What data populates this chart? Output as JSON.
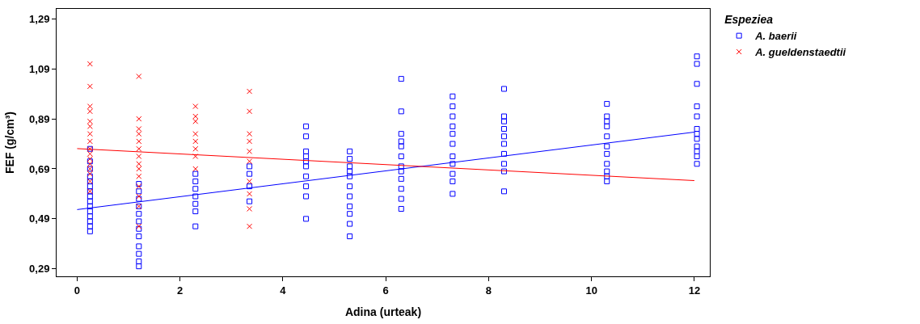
{
  "chart_data": {
    "type": "scatter",
    "xlabel": "Adina (urteak)",
    "ylabel": "FEF (g/cm³)",
    "legend_title": "Espeziea",
    "legend": "top right",
    "xlim": [
      -0.4,
      12.3
    ],
    "xticks": [
      0,
      2,
      4,
      6,
      8,
      10,
      12
    ],
    "ylim": [
      0.26,
      1.33
    ],
    "yticks": [
      {
        "value": 0.29,
        "label": "0,29"
      },
      {
        "value": 0.49,
        "label": "0,49"
      },
      {
        "value": 0.69,
        "label": "0,69"
      },
      {
        "value": 0.89,
        "label": "0,89"
      },
      {
        "value": 1.09,
        "label": "1,09"
      },
      {
        "value": 1.29,
        "label": "1,29"
      }
    ],
    "series": [
      {
        "name": "A. baerii",
        "color": "#0000ff",
        "marker": "square",
        "x": [
          0.25,
          0.25,
          0.25,
          0.25,
          0.25,
          0.25,
          0.25,
          0.25,
          0.25,
          0.25,
          0.25,
          0.25,
          0.25,
          0.25,
          0.25,
          1.2,
          1.2,
          1.2,
          1.2,
          1.2,
          1.2,
          1.2,
          1.2,
          1.2,
          1.2,
          1.2,
          1.2,
          2.3,
          2.3,
          2.3,
          2.3,
          2.3,
          2.3,
          2.3,
          3.35,
          3.35,
          3.35,
          3.35,
          4.45,
          4.45,
          4.45,
          4.45,
          4.45,
          4.45,
          4.45,
          4.45,
          4.45,
          4.45,
          5.3,
          5.3,
          5.3,
          5.3,
          5.3,
          5.3,
          5.3,
          5.3,
          5.3,
          5.3,
          5.3,
          6.3,
          6.3,
          6.3,
          6.3,
          6.3,
          6.3,
          6.3,
          6.3,
          6.3,
          6.3,
          6.3,
          6.3,
          7.3,
          7.3,
          7.3,
          7.3,
          7.3,
          7.3,
          7.3,
          7.3,
          7.3,
          7.3,
          7.3,
          8.3,
          8.3,
          8.3,
          8.3,
          8.3,
          8.3,
          8.3,
          8.3,
          8.3,
          8.3,
          10.3,
          10.3,
          10.3,
          10.3,
          10.3,
          10.3,
          10.3,
          10.3,
          10.3,
          10.3,
          10.3,
          12.05,
          12.05,
          12.05,
          12.05,
          12.05,
          12.05,
          12.05,
          12.05,
          12.05,
          12.05,
          12.05,
          12.05
        ],
        "values": [
          0.77,
          0.72,
          0.69,
          0.66,
          0.64,
          0.62,
          0.6,
          0.58,
          0.56,
          0.54,
          0.52,
          0.5,
          0.48,
          0.46,
          0.44,
          0.63,
          0.6,
          0.57,
          0.54,
          0.51,
          0.48,
          0.45,
          0.42,
          0.38,
          0.35,
          0.32,
          0.3,
          0.67,
          0.64,
          0.61,
          0.58,
          0.55,
          0.52,
          0.46,
          0.7,
          0.67,
          0.62,
          0.56,
          0.86,
          0.82,
          0.76,
          0.74,
          0.72,
          0.7,
          0.66,
          0.62,
          0.58,
          0.49,
          0.76,
          0.73,
          0.7,
          0.68,
          0.66,
          0.62,
          0.58,
          0.54,
          0.51,
          0.47,
          0.42,
          1.05,
          0.92,
          0.83,
          0.8,
          0.78,
          0.74,
          0.7,
          0.68,
          0.65,
          0.61,
          0.57,
          0.53,
          0.98,
          0.94,
          0.9,
          0.86,
          0.83,
          0.79,
          0.74,
          0.71,
          0.67,
          0.64,
          0.59,
          1.01,
          0.9,
          0.88,
          0.85,
          0.82,
          0.79,
          0.75,
          0.71,
          0.68,
          0.6,
          0.95,
          0.9,
          0.88,
          0.86,
          0.82,
          0.78,
          0.75,
          0.71,
          0.68,
          0.66,
          0.64,
          1.14,
          1.11,
          1.03,
          0.94,
          0.9,
          0.85,
          0.83,
          0.81,
          0.78,
          0.76,
          0.74,
          0.71
        ]
      },
      {
        "name": "A. gueldenstaedtii",
        "color": "#ff0000",
        "marker": "cross",
        "x": [
          0.25,
          0.25,
          0.25,
          0.25,
          0.25,
          0.25,
          0.25,
          0.25,
          0.25,
          0.25,
          0.25,
          0.25,
          0.25,
          0.25,
          0.25,
          0.25,
          1.2,
          1.2,
          1.2,
          1.2,
          1.2,
          1.2,
          1.2,
          1.2,
          1.2,
          1.2,
          1.2,
          1.2,
          1.2,
          1.2,
          2.3,
          2.3,
          2.3,
          2.3,
          2.3,
          2.3,
          2.3,
          2.3,
          3.35,
          3.35,
          3.35,
          3.35,
          3.35,
          3.35,
          3.35,
          3.35,
          3.35,
          3.35
        ],
        "values": [
          1.11,
          1.02,
          0.94,
          0.92,
          0.88,
          0.86,
          0.83,
          0.8,
          0.77,
          0.75,
          0.73,
          0.71,
          0.69,
          0.67,
          0.64,
          0.6,
          1.06,
          0.89,
          0.85,
          0.83,
          0.8,
          0.77,
          0.74,
          0.71,
          0.69,
          0.66,
          0.62,
          0.58,
          0.54,
          0.46,
          0.94,
          0.9,
          0.88,
          0.83,
          0.8,
          0.77,
          0.74,
          0.69,
          1.0,
          0.92,
          0.83,
          0.8,
          0.76,
          0.72,
          0.64,
          0.59,
          0.53,
          0.46
        ]
      },
      {
        "type": "line",
        "color": "#0000ff",
        "marker": "none",
        "x": [
          0,
          12
        ],
        "values": [
          0.527,
          0.837
        ]
      },
      {
        "type": "line",
        "color": "#ff0000",
        "marker": "none",
        "x": [
          0,
          12
        ],
        "values": [
          0.771,
          0.643
        ]
      }
    ]
  }
}
